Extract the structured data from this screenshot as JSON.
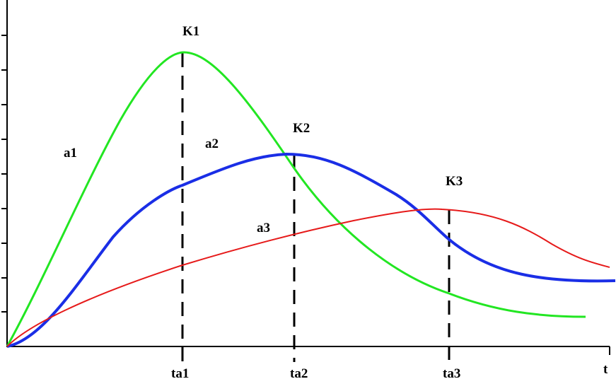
{
  "curves": [
    "a1",
    "a2",
    "a3"
  ],
  "peaks": [
    "K1",
    "K2",
    "K3"
  ],
  "time_marks": [
    "ta1",
    "ta2",
    "ta3"
  ],
  "axis_label": "t"
}
